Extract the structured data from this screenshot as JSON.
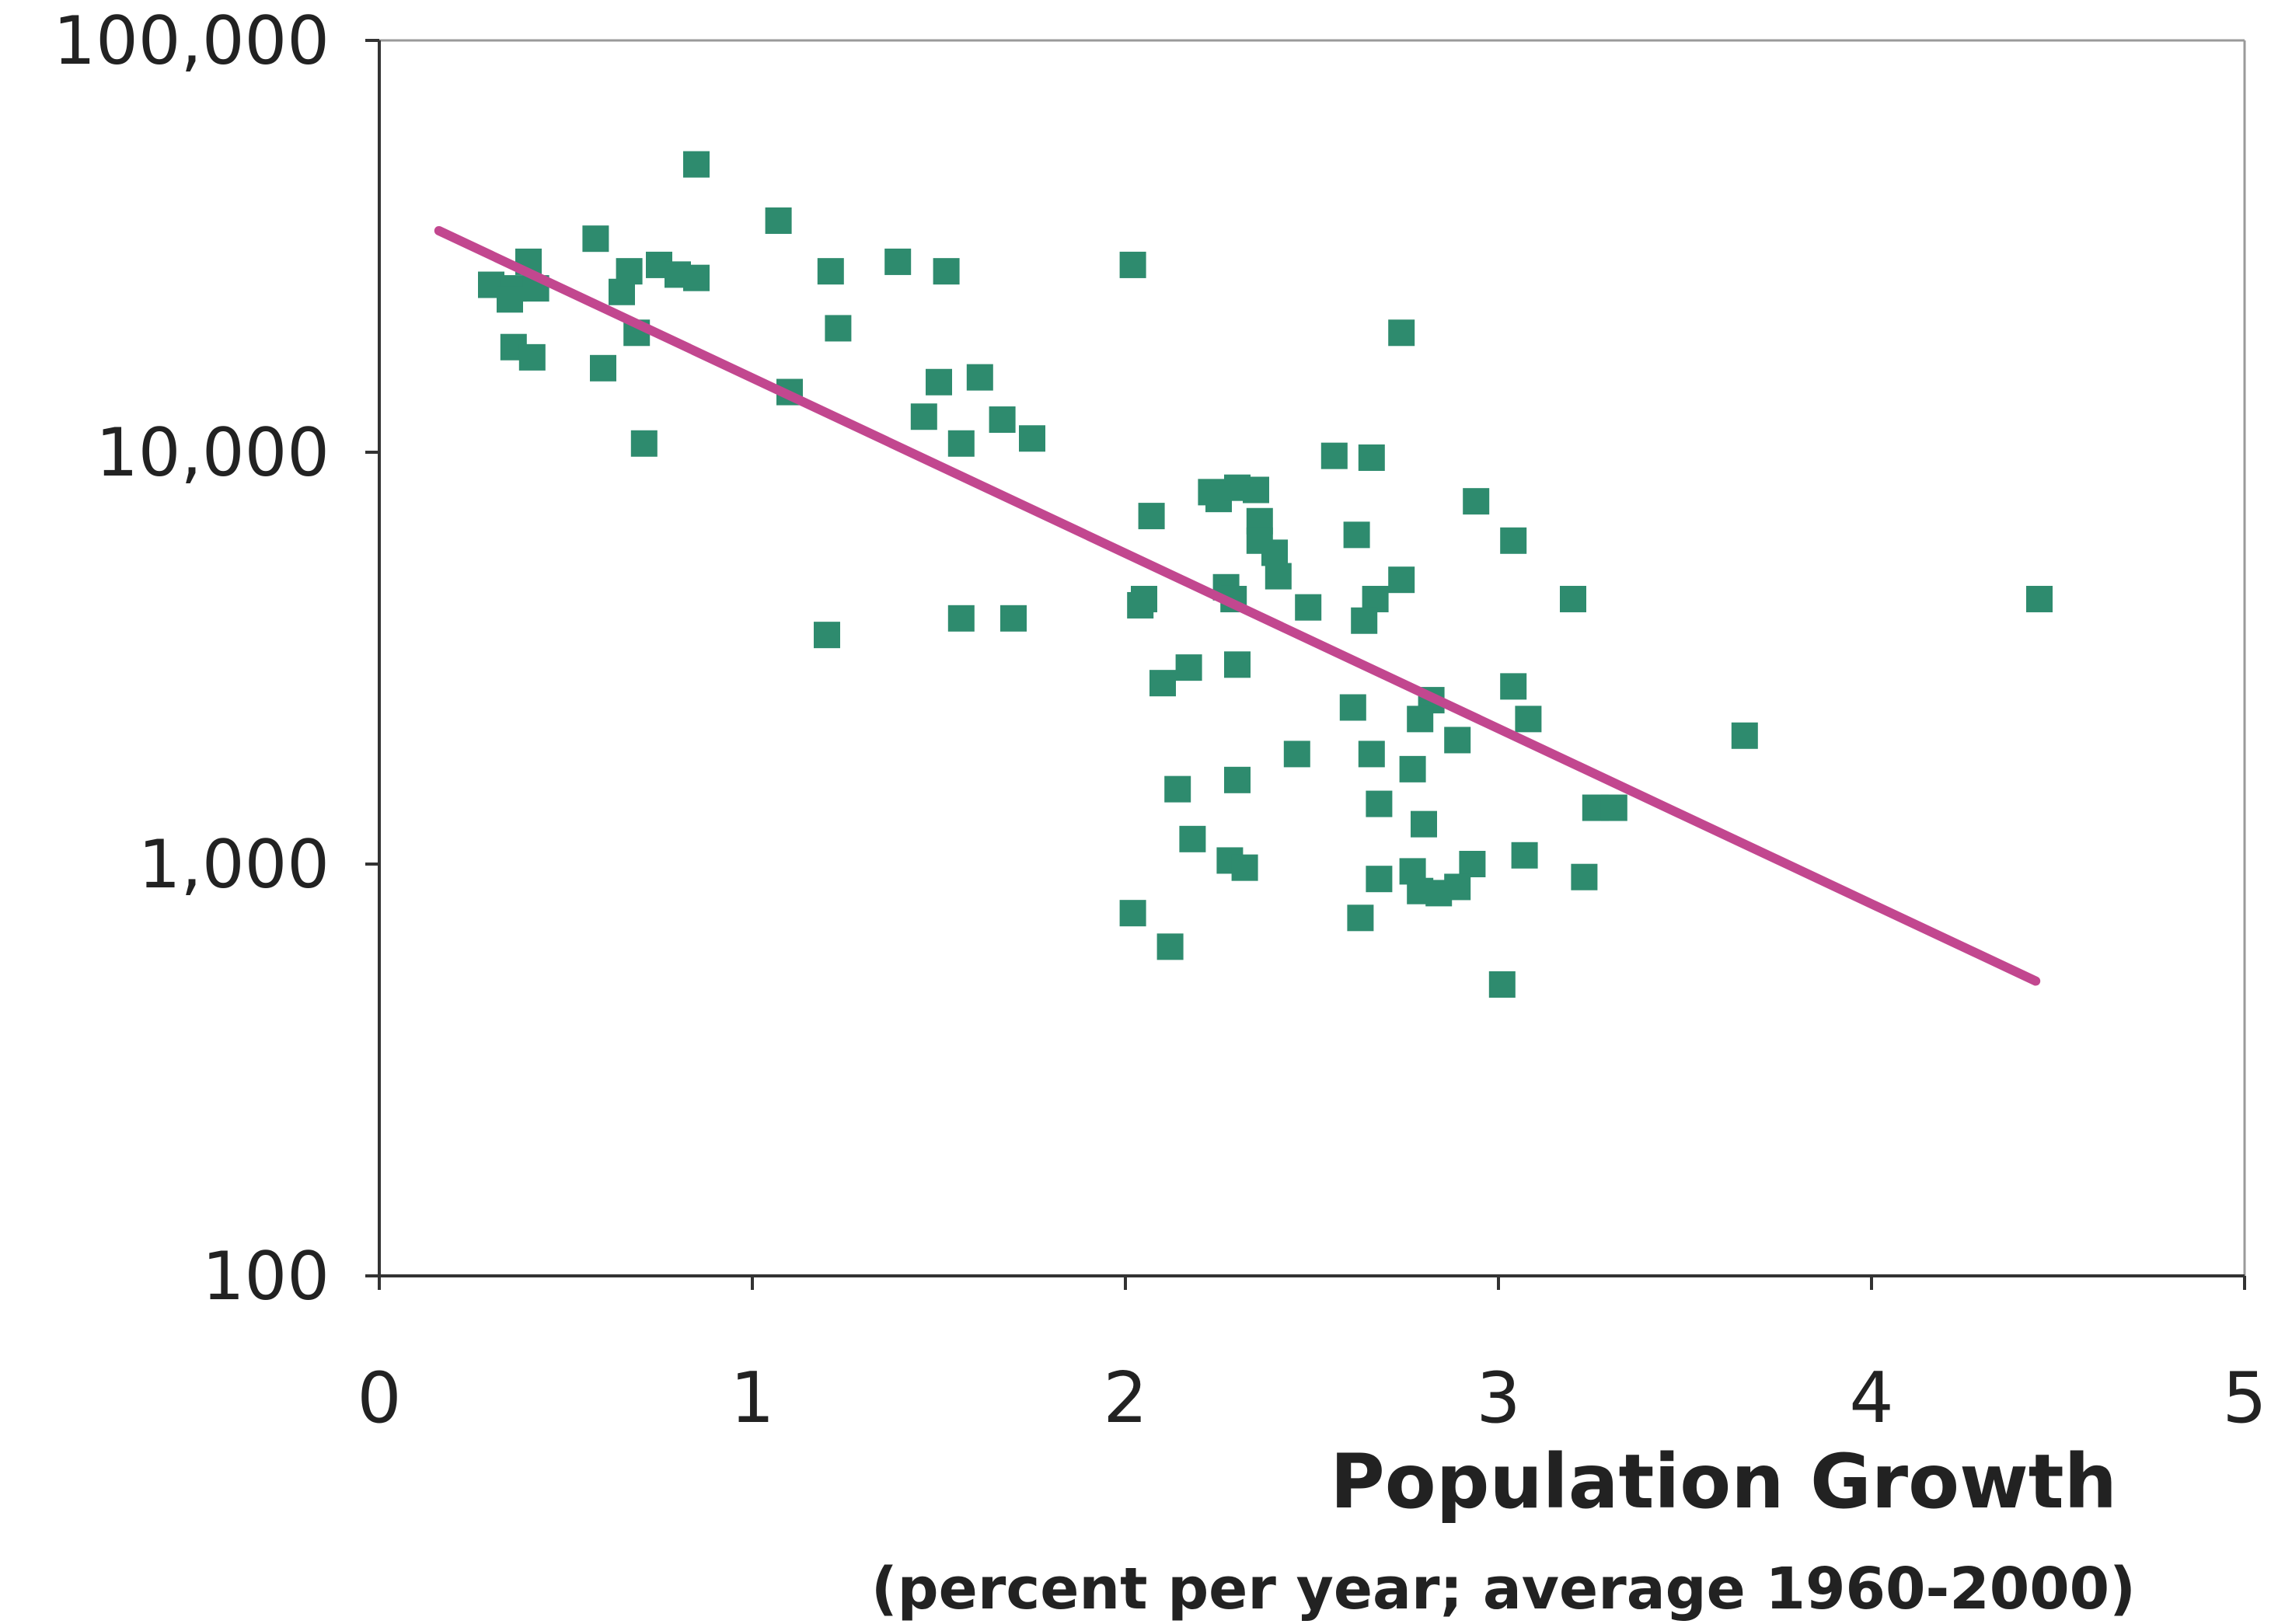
{
  "colors": {
    "points": "#2e8b6e",
    "trend": "#c2478f",
    "axis": "#333333",
    "frame": "#9a9a9a",
    "background": "#ffffff"
  },
  "chart_data": {
    "type": "scatter",
    "title": "",
    "xlabel": "Population Growth",
    "xlabel_sub": "(percent per year; average 1960-2000)",
    "ylabel": "",
    "xlim": [
      0,
      5
    ],
    "ylim": [
      100,
      100000
    ],
    "y_scale": "log",
    "x_ticks": [
      0,
      1,
      2,
      3,
      4,
      5
    ],
    "x_tick_labels": [
      "0",
      "1",
      "2",
      "3",
      "4",
      "5"
    ],
    "y_ticks": [
      100,
      1000,
      10000,
      100000
    ],
    "y_tick_labels": [
      "100",
      "1,000",
      "10,000",
      "100,000"
    ],
    "grid": false,
    "legend": "none",
    "trendline": {
      "x": [
        0.16,
        4.44
      ],
      "y": [
        34500,
        520
      ]
    },
    "points": [
      [
        0.85,
        50000
      ],
      [
        1.07,
        36500
      ],
      [
        0.58,
        33000
      ],
      [
        0.4,
        29000
      ],
      [
        0.75,
        28500
      ],
      [
        0.67,
        27500
      ],
      [
        0.8,
        27000
      ],
      [
        0.85,
        26500
      ],
      [
        0.3,
        25500
      ],
      [
        0.36,
        25000
      ],
      [
        0.42,
        25000
      ],
      [
        0.35,
        23500
      ],
      [
        0.65,
        24500
      ],
      [
        0.69,
        19500
      ],
      [
        0.36,
        18000
      ],
      [
        0.41,
        17000
      ],
      [
        0.6,
        16000
      ],
      [
        0.71,
        10500
      ],
      [
        1.39,
        29000
      ],
      [
        1.21,
        27500
      ],
      [
        1.52,
        27500
      ],
      [
        2.02,
        28500
      ],
      [
        1.23,
        20000
      ],
      [
        1.1,
        14000
      ],
      [
        1.5,
        14800
      ],
      [
        1.61,
        15200
      ],
      [
        1.46,
        12200
      ],
      [
        1.67,
        12000
      ],
      [
        1.56,
        10500
      ],
      [
        1.75,
        10800
      ],
      [
        1.2,
        3600
      ],
      [
        1.56,
        3950
      ],
      [
        1.7,
        3950
      ],
      [
        2.74,
        19500
      ],
      [
        2.56,
        9800
      ],
      [
        2.66,
        9700
      ],
      [
        2.23,
        8000
      ],
      [
        2.25,
        7700
      ],
      [
        2.3,
        8200
      ],
      [
        2.35,
        8100
      ],
      [
        2.07,
        7000
      ],
      [
        2.36,
        6800
      ],
      [
        2.36,
        6100
      ],
      [
        2.4,
        5700
      ],
      [
        2.41,
        5000
      ],
      [
        2.27,
        4700
      ],
      [
        2.29,
        4400
      ],
      [
        2.04,
        4250
      ],
      [
        2.05,
        4400
      ],
      [
        2.62,
        6300
      ],
      [
        2.74,
        4900
      ],
      [
        2.67,
        4400
      ],
      [
        2.64,
        3900
      ],
      [
        2.49,
        4200
      ],
      [
        2.94,
        7600
      ],
      [
        3.04,
        6100
      ],
      [
        3.2,
        4400
      ],
      [
        4.45,
        4400
      ],
      [
        2.3,
        3050
      ],
      [
        2.17,
        3000
      ],
      [
        2.1,
        2750
      ],
      [
        3.04,
        2700
      ],
      [
        2.82,
        2500
      ],
      [
        2.61,
        2400
      ],
      [
        2.79,
        2250
      ],
      [
        3.08,
        2250
      ],
      [
        2.89,
        2000
      ],
      [
        3.66,
        2050
      ],
      [
        2.46,
        1850
      ],
      [
        2.66,
        1850
      ],
      [
        2.77,
        1700
      ],
      [
        2.3,
        1600
      ],
      [
        2.14,
        1520
      ],
      [
        2.68,
        1400
      ],
      [
        3.26,
        1370
      ],
      [
        3.31,
        1370
      ],
      [
        2.8,
        1250
      ],
      [
        2.18,
        1150
      ],
      [
        3.07,
        1050
      ],
      [
        2.28,
        1020
      ],
      [
        2.32,
        980
      ],
      [
        2.77,
        960
      ],
      [
        2.93,
        1000
      ],
      [
        2.68,
        920
      ],
      [
        3.23,
        930
      ],
      [
        2.79,
        860
      ],
      [
        2.84,
        850
      ],
      [
        2.89,
        880
      ],
      [
        2.02,
        760
      ],
      [
        2.63,
        740
      ],
      [
        2.12,
        630
      ],
      [
        3.01,
        510
      ]
    ]
  }
}
